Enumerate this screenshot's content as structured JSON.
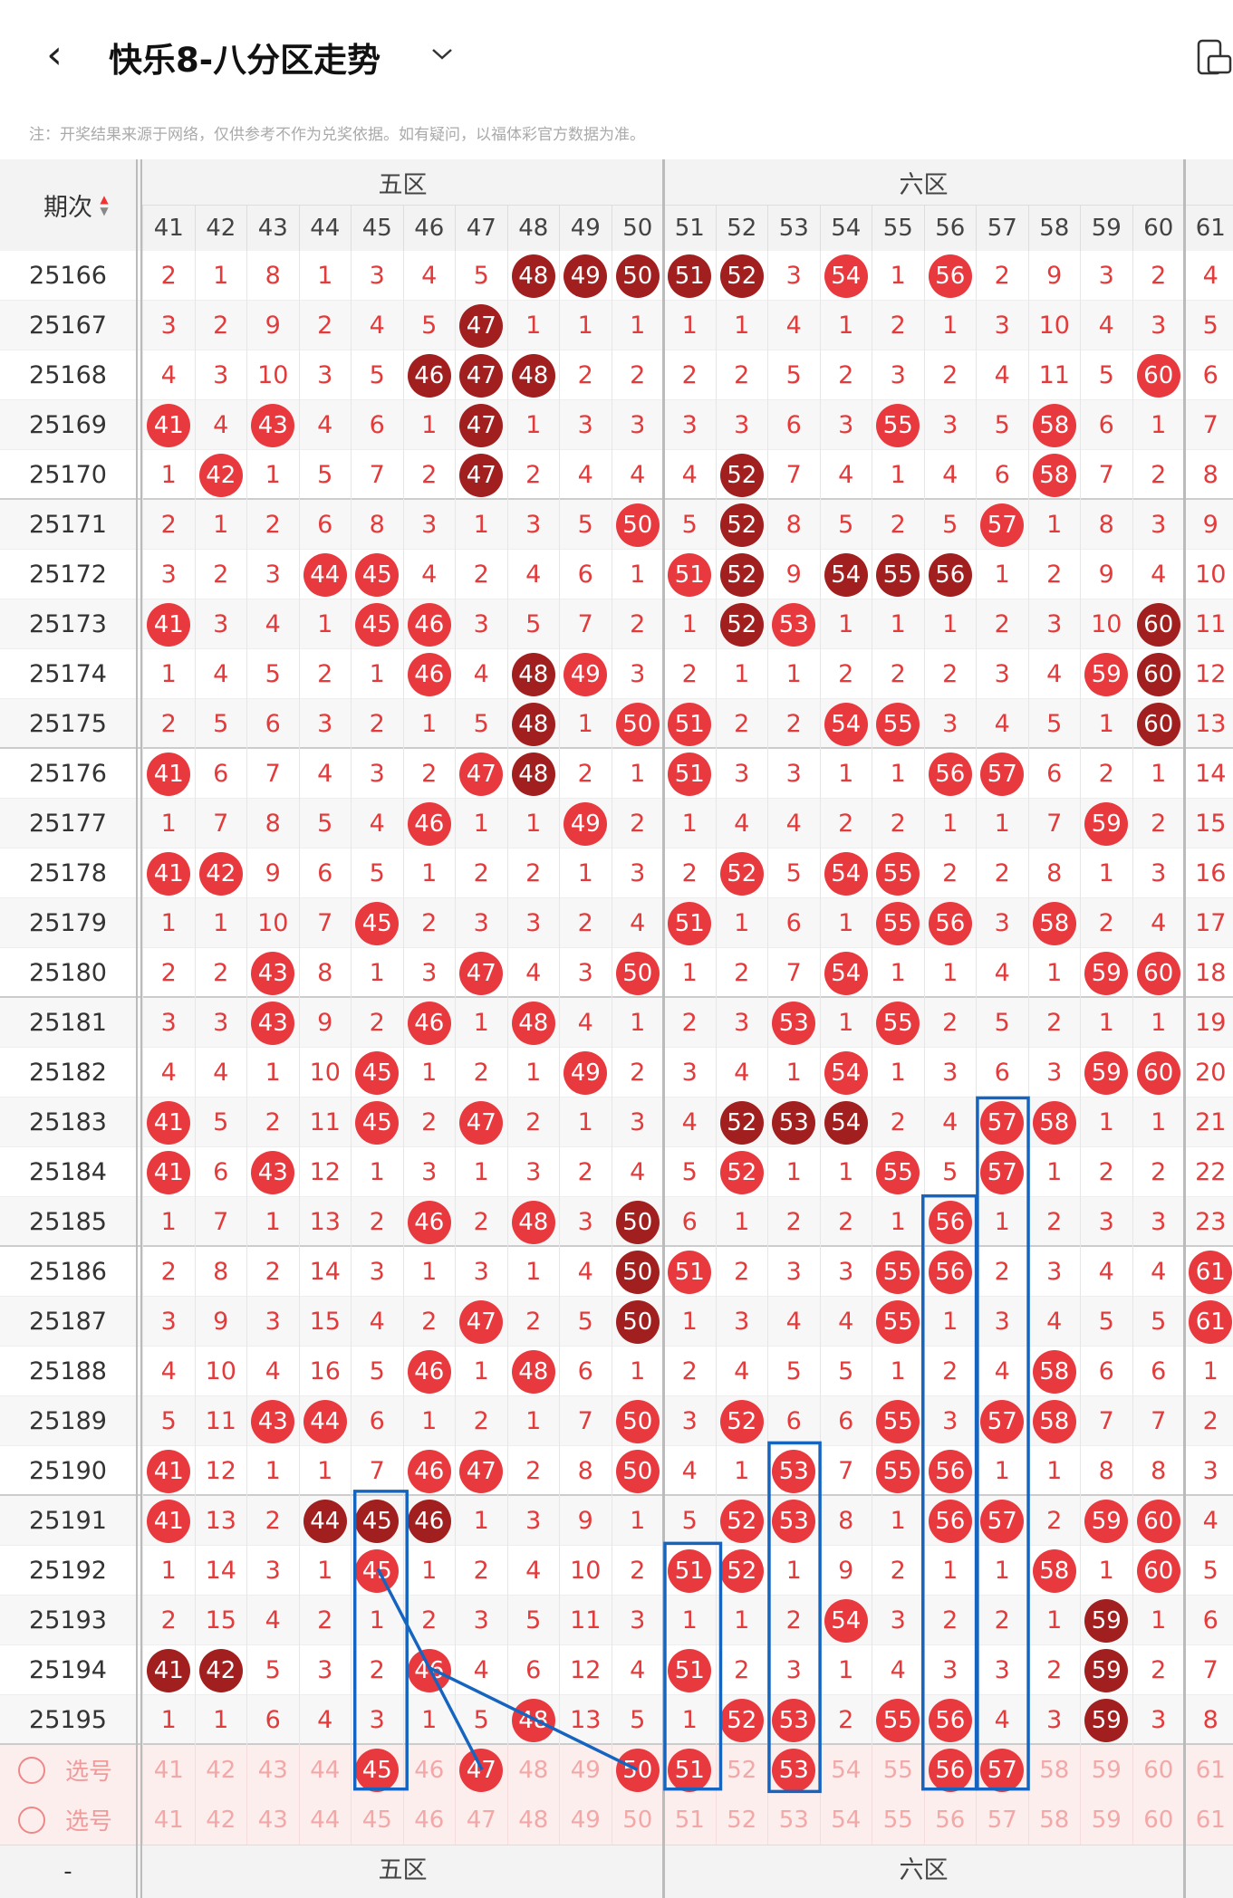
{
  "header": {
    "title": "快乐8-八分区走势"
  },
  "note": "注：开奖结果来源于网络，仅供参考不作为兑奖依据。如有疑问，以福体彩官方数据为准。",
  "table": {
    "issue_header": "期次",
    "zones": [
      "五区",
      "六区"
    ],
    "columns": [
      "41",
      "42",
      "43",
      "44",
      "45",
      "46",
      "47",
      "48",
      "49",
      "50",
      "51",
      "52",
      "53",
      "54",
      "55",
      "56",
      "57",
      "58",
      "59",
      "60",
      "61"
    ],
    "rows": [
      {
        "issue": "25166",
        "cells": [
          "2",
          "1",
          "8",
          "1",
          "3",
          "4",
          "5",
          "48",
          "49",
          "50",
          "51",
          "52",
          "3",
          "54",
          "1",
          "56",
          "2",
          "9",
          "3",
          "2",
          "4"
        ],
        "dark": [
          "48",
          "49",
          "50",
          "51",
          "52"
        ]
      },
      {
        "issue": "25167",
        "cells": [
          "3",
          "2",
          "9",
          "2",
          "4",
          "5",
          "47",
          "1",
          "1",
          "1",
          "1",
          "1",
          "4",
          "1",
          "2",
          "1",
          "3",
          "10",
          "4",
          "3",
          "5"
        ],
        "dark": [
          "47"
        ]
      },
      {
        "issue": "25168",
        "cells": [
          "4",
          "3",
          "10",
          "3",
          "5",
          "46",
          "47",
          "48",
          "2",
          "2",
          "2",
          "2",
          "5",
          "2",
          "3",
          "2",
          "4",
          "11",
          "5",
          "60",
          "6"
        ],
        "dark": [
          "46",
          "47",
          "48"
        ]
      },
      {
        "issue": "25169",
        "cells": [
          "41",
          "4",
          "43",
          "4",
          "6",
          "1",
          "47",
          "1",
          "3",
          "3",
          "3",
          "3",
          "6",
          "3",
          "55",
          "3",
          "5",
          "58",
          "6",
          "1",
          "7"
        ],
        "dark": [
          "47"
        ]
      },
      {
        "issue": "25170",
        "cells": [
          "1",
          "42",
          "1",
          "5",
          "7",
          "2",
          "47",
          "2",
          "4",
          "4",
          "4",
          "52",
          "7",
          "4",
          "1",
          "4",
          "6",
          "58",
          "7",
          "2",
          "8"
        ],
        "dark": [
          "47",
          "52"
        ]
      },
      {
        "issue": "25171",
        "cells": [
          "2",
          "1",
          "2",
          "6",
          "8",
          "3",
          "1",
          "3",
          "5",
          "50",
          "5",
          "52",
          "8",
          "5",
          "2",
          "5",
          "57",
          "1",
          "8",
          "3",
          "9"
        ],
        "dark": [
          "52"
        ]
      },
      {
        "issue": "25172",
        "cells": [
          "3",
          "2",
          "3",
          "44",
          "45",
          "4",
          "2",
          "4",
          "6",
          "1",
          "51",
          "52",
          "9",
          "54",
          "55",
          "56",
          "1",
          "2",
          "9",
          "4",
          "10"
        ],
        "dark": [
          "52",
          "54",
          "55",
          "56"
        ]
      },
      {
        "issue": "25173",
        "cells": [
          "41",
          "3",
          "4",
          "1",
          "45",
          "46",
          "3",
          "5",
          "7",
          "2",
          "1",
          "52",
          "53",
          "1",
          "1",
          "1",
          "2",
          "3",
          "10",
          "60",
          "11"
        ],
        "dark": [
          "52",
          "60"
        ]
      },
      {
        "issue": "25174",
        "cells": [
          "1",
          "4",
          "5",
          "2",
          "1",
          "46",
          "4",
          "48",
          "49",
          "3",
          "2",
          "1",
          "1",
          "2",
          "2",
          "2",
          "3",
          "4",
          "59",
          "60",
          "12"
        ],
        "dark": [
          "48",
          "60"
        ]
      },
      {
        "issue": "25175",
        "cells": [
          "2",
          "5",
          "6",
          "3",
          "2",
          "1",
          "5",
          "48",
          "1",
          "50",
          "51",
          "2",
          "2",
          "54",
          "55",
          "3",
          "4",
          "5",
          "1",
          "60",
          "13"
        ],
        "dark": [
          "48",
          "60"
        ]
      },
      {
        "issue": "25176",
        "cells": [
          "41",
          "6",
          "7",
          "4",
          "3",
          "2",
          "47",
          "48",
          "2",
          "1",
          "51",
          "3",
          "3",
          "1",
          "1",
          "56",
          "57",
          "6",
          "2",
          "1",
          "14"
        ],
        "dark": [
          "48"
        ]
      },
      {
        "issue": "25177",
        "cells": [
          "1",
          "7",
          "8",
          "5",
          "4",
          "46",
          "1",
          "1",
          "49",
          "2",
          "1",
          "4",
          "4",
          "2",
          "2",
          "1",
          "1",
          "7",
          "59",
          "2",
          "15"
        ],
        "dark": []
      },
      {
        "issue": "25178",
        "cells": [
          "41",
          "42",
          "9",
          "6",
          "5",
          "1",
          "2",
          "2",
          "1",
          "3",
          "2",
          "52",
          "5",
          "54",
          "55",
          "2",
          "2",
          "8",
          "1",
          "3",
          "16"
        ],
        "dark": []
      },
      {
        "issue": "25179",
        "cells": [
          "1",
          "1",
          "10",
          "7",
          "45",
          "2",
          "3",
          "3",
          "2",
          "4",
          "51",
          "1",
          "6",
          "1",
          "55",
          "56",
          "3",
          "58",
          "2",
          "4",
          "17"
        ],
        "dark": []
      },
      {
        "issue": "25180",
        "cells": [
          "2",
          "2",
          "43",
          "8",
          "1",
          "3",
          "47",
          "4",
          "3",
          "50",
          "1",
          "2",
          "7",
          "54",
          "1",
          "1",
          "4",
          "1",
          "59",
          "60",
          "18"
        ],
        "dark": []
      },
      {
        "issue": "25181",
        "cells": [
          "3",
          "3",
          "43",
          "9",
          "2",
          "46",
          "1",
          "48",
          "4",
          "1",
          "2",
          "3",
          "53",
          "1",
          "55",
          "2",
          "5",
          "2",
          "1",
          "1",
          "19"
        ],
        "dark": []
      },
      {
        "issue": "25182",
        "cells": [
          "4",
          "4",
          "1",
          "10",
          "45",
          "1",
          "2",
          "1",
          "49",
          "2",
          "3",
          "4",
          "1",
          "54",
          "1",
          "3",
          "6",
          "3",
          "59",
          "60",
          "20"
        ],
        "dark": []
      },
      {
        "issue": "25183",
        "cells": [
          "41",
          "5",
          "2",
          "11",
          "45",
          "2",
          "47",
          "2",
          "1",
          "3",
          "4",
          "52",
          "53",
          "54",
          "2",
          "4",
          "57",
          "58",
          "1",
          "1",
          "21"
        ],
        "dark": [
          "52",
          "53",
          "54"
        ]
      },
      {
        "issue": "25184",
        "cells": [
          "41",
          "6",
          "43",
          "12",
          "1",
          "3",
          "1",
          "3",
          "2",
          "4",
          "5",
          "52",
          "1",
          "1",
          "55",
          "5",
          "57",
          "1",
          "2",
          "2",
          "22"
        ],
        "dark": []
      },
      {
        "issue": "25185",
        "cells": [
          "1",
          "7",
          "1",
          "13",
          "2",
          "46",
          "2",
          "48",
          "3",
          "50",
          "6",
          "1",
          "2",
          "2",
          "1",
          "56",
          "1",
          "2",
          "3",
          "3",
          "23"
        ],
        "dark": [
          "50"
        ]
      },
      {
        "issue": "25186",
        "cells": [
          "2",
          "8",
          "2",
          "14",
          "3",
          "1",
          "3",
          "1",
          "4",
          "50",
          "51",
          "2",
          "3",
          "3",
          "55",
          "56",
          "2",
          "3",
          "4",
          "4",
          "61"
        ],
        "dark": [
          "50"
        ]
      },
      {
        "issue": "25187",
        "cells": [
          "3",
          "9",
          "3",
          "15",
          "4",
          "2",
          "47",
          "2",
          "5",
          "50",
          "1",
          "3",
          "4",
          "4",
          "55",
          "1",
          "3",
          "4",
          "5",
          "5",
          "61"
        ],
        "dark": [
          "50"
        ]
      },
      {
        "issue": "25188",
        "cells": [
          "4",
          "10",
          "4",
          "16",
          "5",
          "46",
          "1",
          "48",
          "6",
          "1",
          "2",
          "4",
          "5",
          "5",
          "1",
          "2",
          "4",
          "58",
          "6",
          "6",
          "1"
        ],
        "dark": []
      },
      {
        "issue": "25189",
        "cells": [
          "5",
          "11",
          "43",
          "44",
          "6",
          "1",
          "2",
          "1",
          "7",
          "50",
          "3",
          "52",
          "6",
          "6",
          "55",
          "3",
          "57",
          "58",
          "7",
          "7",
          "2"
        ],
        "dark": []
      },
      {
        "issue": "25190",
        "cells": [
          "41",
          "12",
          "1",
          "1",
          "7",
          "46",
          "47",
          "2",
          "8",
          "50",
          "4",
          "1",
          "53",
          "7",
          "55",
          "56",
          "1",
          "1",
          "8",
          "8",
          "3"
        ],
        "dark": []
      },
      {
        "issue": "25191",
        "cells": [
          "41",
          "13",
          "2",
          "44",
          "45",
          "46",
          "1",
          "3",
          "9",
          "1",
          "5",
          "52",
          "53",
          "8",
          "1",
          "56",
          "57",
          "2",
          "59",
          "60",
          "4"
        ],
        "dark": [
          "44",
          "45",
          "46"
        ]
      },
      {
        "issue": "25192",
        "cells": [
          "1",
          "14",
          "3",
          "1",
          "45",
          "1",
          "2",
          "4",
          "10",
          "2",
          "51",
          "52",
          "1",
          "9",
          "2",
          "1",
          "1",
          "58",
          "1",
          "60",
          "5"
        ],
        "dark": []
      },
      {
        "issue": "25193",
        "cells": [
          "2",
          "15",
          "4",
          "2",
          "1",
          "2",
          "3",
          "5",
          "11",
          "3",
          "1",
          "1",
          "2",
          "54",
          "3",
          "2",
          "2",
          "1",
          "59",
          "1",
          "6"
        ],
        "dark": [
          "59"
        ]
      },
      {
        "issue": "25194",
        "cells": [
          "41",
          "42",
          "5",
          "3",
          "2",
          "46",
          "4",
          "6",
          "12",
          "4",
          "51",
          "2",
          "3",
          "1",
          "4",
          "3",
          "3",
          "2",
          "59",
          "2",
          "7"
        ],
        "dark": [
          "41",
          "42",
          "59"
        ]
      },
      {
        "issue": "25195",
        "cells": [
          "1",
          "1",
          "6",
          "4",
          "3",
          "1",
          "5",
          "48",
          "13",
          "5",
          "1",
          "52",
          "53",
          "2",
          "55",
          "56",
          "4",
          "3",
          "59",
          "3",
          "8"
        ],
        "dark": [
          "59"
        ]
      }
    ],
    "select_rows": [
      {
        "label": "选号",
        "selected": [
          "45",
          "47",
          "50",
          "51",
          "53",
          "56",
          "57"
        ]
      },
      {
        "label": "选号",
        "selected": []
      }
    ],
    "footer_issue": "-",
    "footer_zones": [
      "五区",
      "六区"
    ]
  }
}
